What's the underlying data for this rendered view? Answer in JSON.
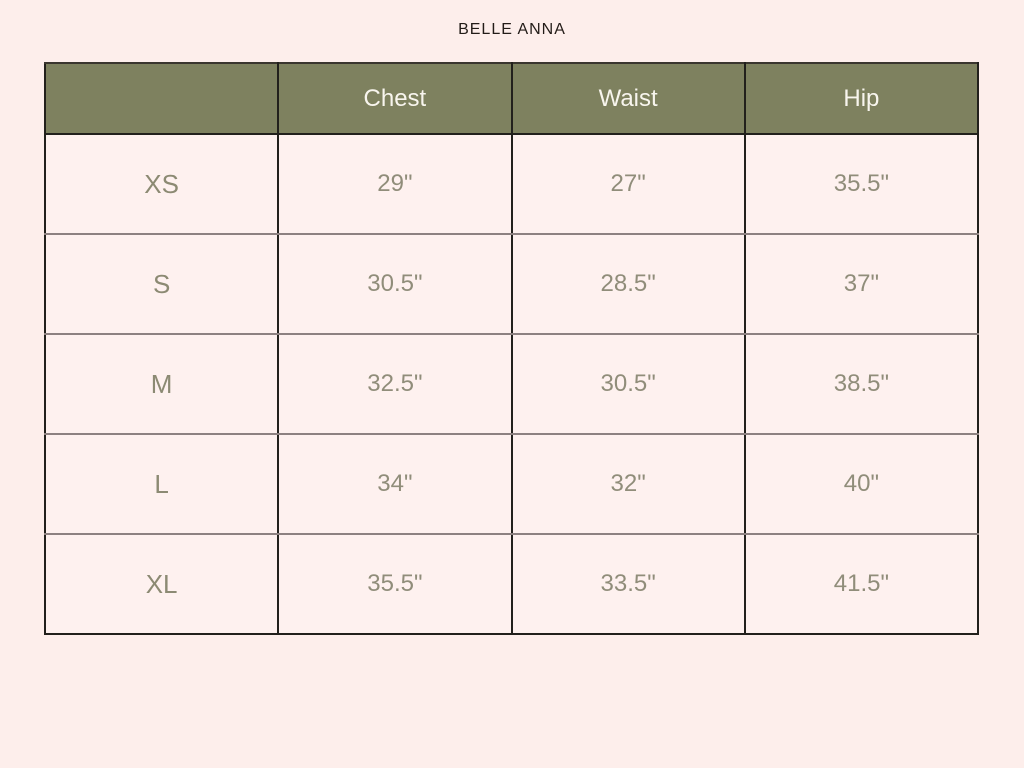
{
  "page": {
    "title": "BELLE ANNA"
  },
  "colors": {
    "page_background": "#fdeeeb",
    "header_background": "#7e815f",
    "header_text": "#f8f5ee",
    "cell_background": "#fef1ef",
    "cell_text": "#908d7a",
    "dark_border": "#22201c",
    "row_separator": "#8d8181"
  },
  "chart_data": {
    "type": "table",
    "title": "BELLE ANNA",
    "columns": [
      "",
      "Chest",
      "Waist",
      "Hip"
    ],
    "rows": [
      {
        "size": "XS",
        "chest": "29\"",
        "waist": "27\"",
        "hip": "35.5\""
      },
      {
        "size": "S",
        "chest": "30.5\"",
        "waist": "28.5\"",
        "hip": "37\""
      },
      {
        "size": "M",
        "chest": "32.5\"",
        "waist": "30.5\"",
        "hip": "38.5\""
      },
      {
        "size": "L",
        "chest": "34\"",
        "waist": "32\"",
        "hip": "40\""
      },
      {
        "size": "XL",
        "chest": "35.5\"",
        "waist": "33.5\"",
        "hip": "41.5\""
      }
    ]
  }
}
